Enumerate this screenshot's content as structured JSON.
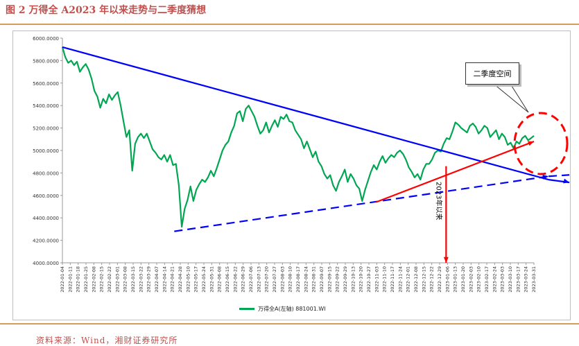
{
  "figure_title": "图 2 万得全 A2023 年以来走势与二季度猜想",
  "source_note": "资料来源：Wind，湘财证券研究所",
  "chart_data": {
    "type": "line",
    "title": "",
    "xlabel": "",
    "ylabel": "",
    "ylim": [
      4000,
      6000
    ],
    "y_ticks": [
      "4000.0000",
      "4200.0000",
      "4400.0000",
      "4600.0000",
      "4800.0000",
      "5000.0000",
      "5200.0000",
      "5400.0000",
      "5600.0000",
      "5800.0000",
      "6000.0000"
    ],
    "x_ticks": [
      "2022-01-04",
      "2022-01-11",
      "2022-01-18",
      "2022-01-25",
      "2022-02-08",
      "2022-02-15",
      "2022-02-22",
      "2022-03-01",
      "2022-03-08",
      "2022-03-15",
      "2022-03-22",
      "2022-03-29",
      "2022-04-07",
      "2022-04-14",
      "2022-04-21",
      "2022-04-28",
      "2022-05-10",
      "2022-05-17",
      "2022-05-24",
      "2022-05-31",
      "2022-06-08",
      "2022-06-15",
      "2022-06-22",
      "2022-06-29",
      "2022-07-06",
      "2022-07-13",
      "2022-07-20",
      "2022-07-27",
      "2022-08-03",
      "2022-08-10",
      "2022-08-17",
      "2022-08-24",
      "2022-08-31",
      "2022-09-07",
      "2022-09-15",
      "2022-09-22",
      "2022-09-29",
      "2022-10-13",
      "2022-10-20",
      "2022-10-27",
      "2022-11-03",
      "2022-11-10",
      "2022-11-17",
      "2022-11-24",
      "2022-12-01",
      "2022-12-08",
      "2022-12-15",
      "2022-12-22",
      "2022-12-29",
      "2023-01-06",
      "2023-01-13",
      "2023-01-20",
      "2023-02-03",
      "2023-02-10",
      "2023-02-17",
      "2023-02-24",
      "2023-03-03",
      "2023-03-10",
      "2023-03-17",
      "2023-03-24",
      "2023-03-31"
    ],
    "series": [
      {
        "name": "万得全A(左轴) 881001.WI",
        "color": "#00a651",
        "values": [
          5920,
          5830,
          5780,
          5800,
          5760,
          5790,
          5700,
          5740,
          5770,
          5720,
          5640,
          5530,
          5480,
          5380,
          5460,
          5420,
          5500,
          5450,
          5490,
          5520,
          5400,
          5260,
          5120,
          5180,
          4820,
          5060,
          5120,
          5150,
          5110,
          5150,
          5080,
          5010,
          4980,
          4940,
          4920,
          4960,
          4900,
          4960,
          4870,
          4880,
          4690,
          4320,
          4480,
          4560,
          4680,
          4550,
          4650,
          4700,
          4740,
          4720,
          4760,
          4820,
          4770,
          4840,
          4920,
          5000,
          5050,
          5080,
          5160,
          5220,
          5330,
          5350,
          5260,
          5370,
          5400,
          5350,
          5300,
          5220,
          5150,
          5180,
          5250,
          5160,
          5220,
          5270,
          5210,
          5300,
          5280,
          5320,
          5260,
          5250,
          5180,
          5140,
          5100,
          5020,
          5080,
          5010,
          4940,
          4990,
          4900,
          4860,
          4790,
          4750,
          4780,
          4690,
          4640,
          4720,
          4770,
          4830,
          4720,
          4790,
          4750,
          4690,
          4660,
          4550,
          4650,
          4730,
          4810,
          4870,
          4830,
          4900,
          4950,
          4890,
          4930,
          4960,
          4940,
          4980,
          5000,
          4970,
          4920,
          4850,
          4810,
          4760,
          4790,
          4740,
          4830,
          4880,
          4880,
          4920,
          4980,
          5000,
          4990,
          5060,
          5110,
          5100,
          5170,
          5250,
          5230,
          5200,
          5180,
          5160,
          5220,
          5240,
          5210,
          5150,
          5180,
          5220,
          5200,
          5120,
          5150,
          5180,
          5100,
          5150,
          5120,
          5050,
          5070,
          5020,
          5080,
          5060,
          5110,
          5130,
          5090,
          5110,
          5130
        ]
      }
    ],
    "annotations": {
      "q2_space_label": "二季度空间",
      "since_2023_label": "2023年以来"
    },
    "trend_lines": [
      {
        "name": "downtrend-resistance",
        "color": "#0000ff",
        "style": "solid",
        "from": [
          "2022-01-04",
          5920
        ],
        "to": [
          "2023-04-14",
          4740
        ]
      },
      {
        "name": "rising-support",
        "color": "#0000ff",
        "style": "dashed",
        "from": [
          "2022-04-21",
          4280
        ],
        "to": [
          "2023-04-14",
          4770
        ]
      },
      {
        "name": "2023-rally-line",
        "color": "#ff0000",
        "style": "solid",
        "from": [
          "2022-10-31",
          4540
        ],
        "to": [
          "2023-03-31",
          5080
        ]
      },
      {
        "name": "2023-marker",
        "color": "#ff0000",
        "style": "solid",
        "from": [
          "2023-01-06",
          4860
        ],
        "to": [
          "2023-01-06",
          4000
        ]
      }
    ],
    "grid": false,
    "legend_position": "bottom"
  }
}
